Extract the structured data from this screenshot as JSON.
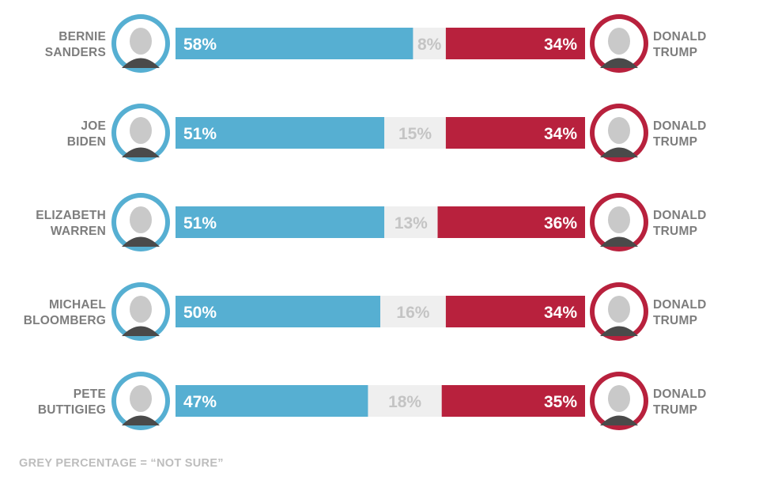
{
  "colors": {
    "democrat": "#56afd2",
    "not_sure": "#efefef",
    "not_sure_text": "#c4c4c4",
    "republican": "#b8213d",
    "name_text": "#7d7d7d",
    "avatar_bg": "#ffffff"
  },
  "footnote": "GREY PERCENTAGE = “NOT SURE”",
  "chart_data": {
    "type": "bar",
    "stacked": true,
    "orientation": "horizontal",
    "rows": [
      {
        "left": [
          "BERNIE",
          "SANDERS"
        ],
        "right": [
          "DONALD",
          "TRUMP"
        ],
        "values": [
          58,
          8,
          34
        ],
        "labels": [
          "58%",
          "8%",
          "34%"
        ]
      },
      {
        "left": [
          "JOE",
          "BIDEN"
        ],
        "right": [
          "DONALD",
          "TRUMP"
        ],
        "values": [
          51,
          15,
          34
        ],
        "labels": [
          "51%",
          "15%",
          "34%"
        ]
      },
      {
        "left": [
          "ELIZABETH",
          "WARREN"
        ],
        "right": [
          "DONALD",
          "TRUMP"
        ],
        "values": [
          51,
          13,
          36
        ],
        "labels": [
          "51%",
          "13%",
          "36%"
        ]
      },
      {
        "left": [
          "MICHAEL",
          "BLOOMBERG"
        ],
        "right": [
          "DONALD",
          "TRUMP"
        ],
        "values": [
          50,
          16,
          34
        ],
        "labels": [
          "50%",
          "16%",
          "34%"
        ]
      },
      {
        "left": [
          "PETE",
          "BUTTIGIEG"
        ],
        "right": [
          "DONALD",
          "TRUMP"
        ],
        "values": [
          47,
          18,
          35
        ],
        "labels": [
          "47%",
          "18%",
          "35%"
        ]
      }
    ],
    "segments": [
      "democrat",
      "not sure",
      "trump"
    ],
    "xlim": [
      0,
      100
    ],
    "grid": false,
    "legend": "none"
  }
}
